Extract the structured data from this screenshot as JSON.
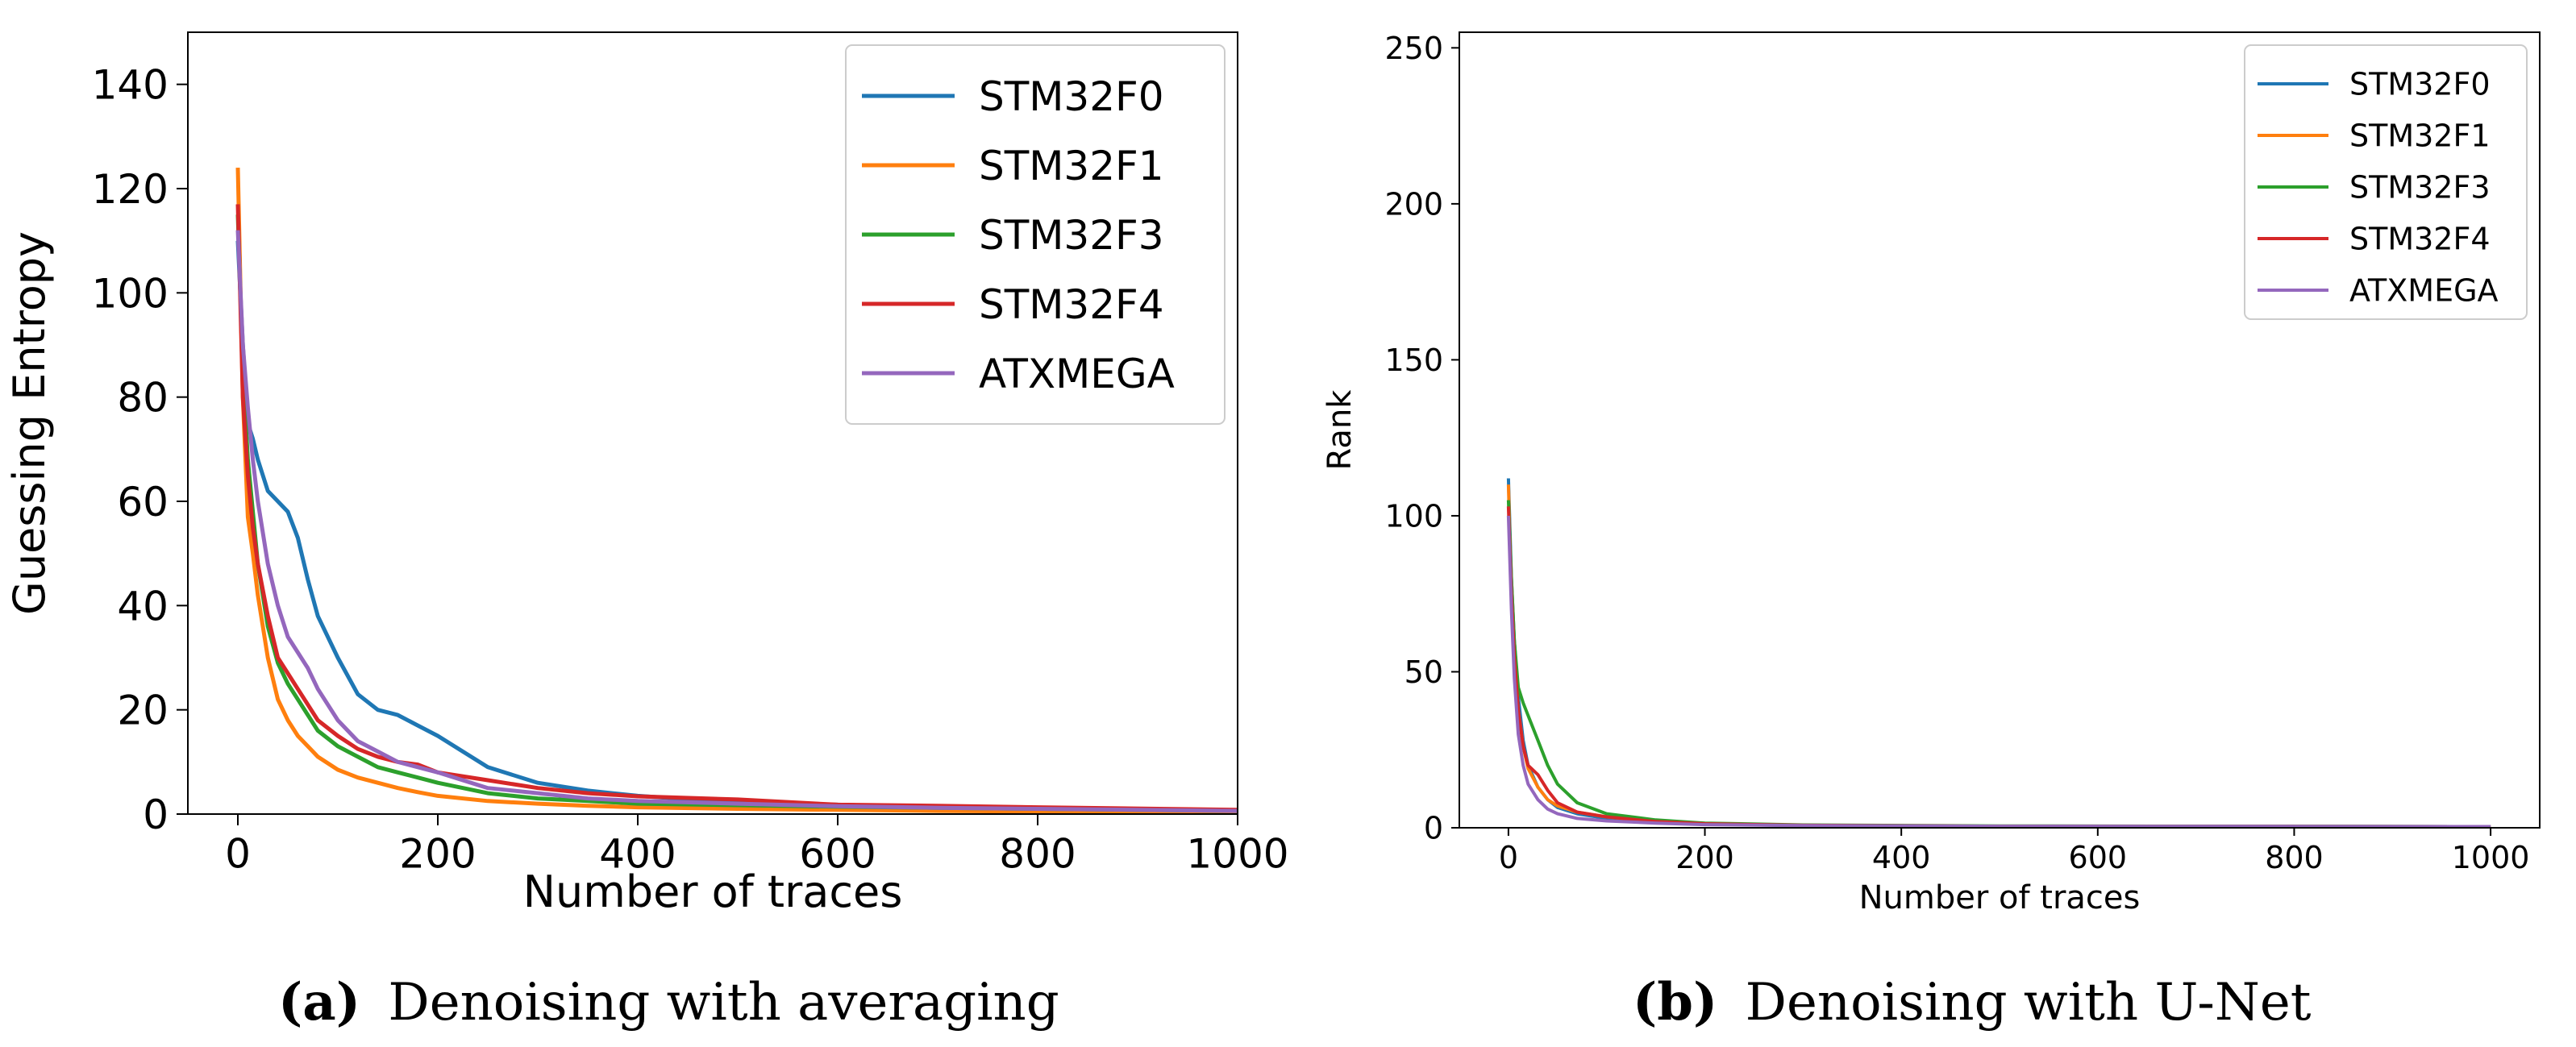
{
  "colors": {
    "STM32F0": "#1f77b4",
    "STM32F1": "#ff7f0e",
    "STM32F3": "#2ca02c",
    "STM32F4": "#d62728",
    "ATXMEGA": "#9467bd"
  },
  "captions": {
    "a": {
      "label": "(a)",
      "text": "Denoising with averaging"
    },
    "b": {
      "label": "(b)",
      "text": "Denoising with U-Net"
    }
  },
  "chart_data": [
    {
      "id": "a",
      "type": "line",
      "title": "",
      "xlabel": "Number of traces",
      "ylabel": "Guessing Entropy",
      "xlim": [
        -50,
        1000
      ],
      "ylim": [
        0,
        150
      ],
      "xticks": [
        0,
        200,
        400,
        600,
        800,
        1000
      ],
      "yticks": [
        0,
        20,
        40,
        60,
        80,
        100,
        120,
        140
      ],
      "legend": "top-right",
      "series": [
        {
          "name": "STM32F0",
          "x": [
            0,
            5,
            10,
            15,
            20,
            30,
            40,
            50,
            60,
            70,
            80,
            100,
            120,
            140,
            160,
            180,
            200,
            250,
            300,
            350,
            400,
            500,
            600,
            700,
            800,
            1000
          ],
          "y": [
            110,
            90,
            75,
            72,
            68,
            62,
            60,
            58,
            53,
            45,
            38,
            30,
            23,
            20,
            19,
            17,
            15,
            9,
            6,
            4.5,
            3.5,
            2.2,
            1.8,
            1.3,
            1,
            0.5
          ]
        },
        {
          "name": "STM32F1",
          "x": [
            0,
            5,
            10,
            15,
            20,
            30,
            40,
            50,
            60,
            70,
            80,
            100,
            120,
            140,
            160,
            180,
            200,
            250,
            300,
            350,
            400,
            500,
            600,
            700,
            800,
            1000
          ],
          "y": [
            124,
            80,
            57,
            50,
            42,
            30,
            22,
            18,
            15,
            13,
            11,
            8.5,
            7,
            6,
            5,
            4.2,
            3.5,
            2.5,
            2,
            1.6,
            1.3,
            1,
            0.8,
            0.6,
            0.5,
            0.4
          ]
        },
        {
          "name": "STM32F3",
          "x": [
            0,
            5,
            10,
            15,
            20,
            30,
            40,
            50,
            60,
            70,
            80,
            100,
            120,
            140,
            160,
            180,
            200,
            250,
            300,
            350,
            400,
            500,
            600,
            700,
            800,
            1000
          ],
          "y": [
            115,
            85,
            68,
            58,
            48,
            36,
            29,
            25,
            22,
            19,
            16,
            13,
            11,
            9,
            8,
            7,
            6,
            4,
            3,
            2.5,
            2,
            1.7,
            1.4,
            1.2,
            1,
            0.6
          ]
        },
        {
          "name": "STM32F4",
          "x": [
            0,
            5,
            10,
            15,
            20,
            30,
            40,
            50,
            60,
            70,
            80,
            100,
            120,
            140,
            160,
            180,
            200,
            250,
            300,
            350,
            400,
            500,
            600,
            700,
            800,
            1000
          ],
          "y": [
            117,
            80,
            65,
            55,
            48,
            38,
            30,
            27,
            24,
            21,
            18,
            15,
            12.5,
            11,
            10,
            9.5,
            8,
            6.5,
            5,
            4,
            3.4,
            2.8,
            1.8,
            1.6,
            1.3,
            0.8
          ]
        },
        {
          "name": "ATXMEGA",
          "x": [
            0,
            5,
            10,
            15,
            20,
            30,
            40,
            50,
            60,
            70,
            80,
            100,
            120,
            140,
            160,
            180,
            200,
            250,
            300,
            350,
            400,
            500,
            600,
            700,
            800,
            1000
          ],
          "y": [
            112,
            90,
            78,
            68,
            60,
            48,
            40,
            34,
            31,
            28,
            24,
            18,
            14,
            12,
            10,
            9,
            8,
            5,
            4,
            3,
            2.5,
            2,
            1.5,
            1.2,
            1,
            0.6
          ]
        }
      ]
    },
    {
      "id": "b",
      "type": "line",
      "title": "",
      "xlabel": "Number of traces",
      "ylabel": "Rank",
      "xlim": [
        -50,
        1050
      ],
      "ylim": [
        0,
        255
      ],
      "xticks": [
        0,
        200,
        400,
        600,
        800,
        1000
      ],
      "yticks": [
        0,
        50,
        100,
        150,
        200,
        250
      ],
      "legend": "top-right",
      "series": [
        {
          "name": "STM32F0",
          "x": [
            0,
            3,
            6,
            10,
            15,
            20,
            30,
            40,
            50,
            70,
            100,
            150,
            200,
            300,
            500,
            1000
          ],
          "y": [
            112,
            80,
            60,
            42,
            28,
            20,
            13,
            9,
            6.5,
            4.5,
            3,
            1.8,
            1.2,
            0.7,
            0.5,
            0.4
          ]
        },
        {
          "name": "STM32F1",
          "x": [
            0,
            3,
            6,
            10,
            15,
            20,
            30,
            40,
            50,
            70,
            100,
            150,
            200,
            300,
            500,
            1000
          ],
          "y": [
            110,
            75,
            55,
            38,
            26,
            19,
            13,
            9,
            7,
            5,
            3.5,
            2,
            1.3,
            0.8,
            0.5,
            0.4
          ]
        },
        {
          "name": "STM32F3",
          "x": [
            0,
            3,
            6,
            10,
            15,
            20,
            30,
            40,
            50,
            70,
            100,
            150,
            200,
            300,
            500,
            1000
          ],
          "y": [
            105,
            80,
            60,
            45,
            40,
            36,
            28,
            20,
            14,
            8,
            4.5,
            2.5,
            1.5,
            0.9,
            0.6,
            0.4
          ]
        },
        {
          "name": "STM32F4",
          "x": [
            0,
            3,
            6,
            10,
            15,
            20,
            30,
            40,
            50,
            70,
            100,
            150,
            200,
            300,
            500,
            1000
          ],
          "y": [
            103,
            75,
            55,
            38,
            26,
            20,
            17,
            12,
            8,
            5,
            3.5,
            2,
            1.3,
            0.8,
            0.5,
            0.4
          ]
        },
        {
          "name": "ATXMEGA",
          "x": [
            0,
            3,
            6,
            10,
            15,
            20,
            30,
            40,
            50,
            70,
            100,
            150,
            200,
            300,
            500,
            1000
          ],
          "y": [
            100,
            70,
            48,
            30,
            20,
            14,
            9,
            6,
            4.5,
            3,
            2.2,
            1.5,
            1,
            0.7,
            0.5,
            0.4
          ]
        }
      ]
    }
  ]
}
